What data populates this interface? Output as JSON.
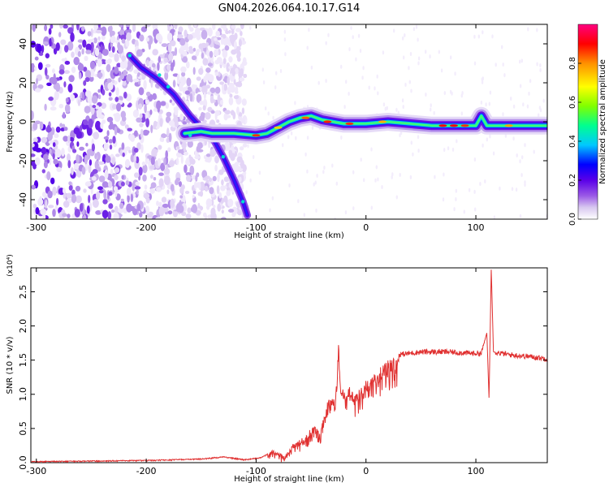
{
  "title": "GN04.2026.064.10.17.G14",
  "chart_data": [
    {
      "type": "heatmap",
      "xlabel": "Height of straight line (km)",
      "ylabel": "Frequency (Hz)",
      "xlim": [
        -305,
        165
      ],
      "ylim": [
        -50,
        50
      ],
      "x_ticks": [
        -300,
        -200,
        -100,
        0,
        100
      ],
      "y_ticks": [
        -40,
        -20,
        0,
        20,
        40
      ],
      "colorbar": {
        "label": "Normalized spectral amplitude",
        "range": [
          0,
          1
        ],
        "ticks": [
          0.0,
          0.2,
          0.4,
          0.6,
          0.8
        ],
        "colormap": [
          "#ffffff",
          "#d8c8f0",
          "#9b59e6",
          "#5a00e8",
          "#0000ff",
          "#00c8ff",
          "#00ff90",
          "#80ff00",
          "#ffff00",
          "#ff9000",
          "#ff0000",
          "#ff0080"
        ]
      },
      "ridge": [
        {
          "x": -165,
          "y": -6
        },
        {
          "x": -150,
          "y": -5
        },
        {
          "x": -140,
          "y": -6
        },
        {
          "x": -120,
          "y": -6
        },
        {
          "x": -100,
          "y": -7
        },
        {
          "x": -90,
          "y": -6
        },
        {
          "x": -80,
          "y": -3
        },
        {
          "x": -70,
          "y": 0
        },
        {
          "x": -60,
          "y": 2
        },
        {
          "x": -50,
          "y": 3
        },
        {
          "x": -40,
          "y": 1
        },
        {
          "x": -30,
          "y": 0
        },
        {
          "x": -20,
          "y": -1
        },
        {
          "x": -10,
          "y": -1
        },
        {
          "x": 0,
          "y": -1
        },
        {
          "x": 20,
          "y": 0
        },
        {
          "x": 40,
          "y": -1
        },
        {
          "x": 60,
          "y": -2
        },
        {
          "x": 80,
          "y": -2
        },
        {
          "x": 100,
          "y": -2
        },
        {
          "x": 105,
          "y": 3
        },
        {
          "x": 110,
          "y": -2
        },
        {
          "x": 130,
          "y": -2
        },
        {
          "x": 165,
          "y": -2
        }
      ],
      "branch_up": [
        {
          "x": -215,
          "y": 34
        },
        {
          "x": -205,
          "y": 28
        },
        {
          "x": -190,
          "y": 22
        },
        {
          "x": -175,
          "y": 14
        },
        {
          "x": -160,
          "y": 3
        },
        {
          "x": -150,
          "y": -3
        }
      ],
      "branch_down": [
        {
          "x": -140,
          "y": -8
        },
        {
          "x": -130,
          "y": -18
        },
        {
          "x": -120,
          "y": -30
        },
        {
          "x": -112,
          "y": -41
        },
        {
          "x": -108,
          "y": -48
        }
      ],
      "noise_region_x": [
        -305,
        -110
      ]
    },
    {
      "type": "line",
      "xlabel": "Height of straight line (km)",
      "ylabel": "SNR (10 * v/v)",
      "y_multiplier": "(x10⁴)",
      "xlim": [
        -305,
        165
      ],
      "ylim": [
        0,
        2.85
      ],
      "x_ticks": [
        -300,
        -200,
        -100,
        0,
        100
      ],
      "y_ticks": [
        0.0,
        0.5,
        1.0,
        1.5,
        2.0,
        2.5
      ],
      "color": "#e03030",
      "series": [
        {
          "points": [
            {
              "x": -305,
              "y": 0.02
            },
            {
              "x": -250,
              "y": 0.03
            },
            {
              "x": -200,
              "y": 0.04
            },
            {
              "x": -150,
              "y": 0.06
            },
            {
              "x": -130,
              "y": 0.09
            },
            {
              "x": -110,
              "y": 0.05
            },
            {
              "x": -95,
              "y": 0.08
            },
            {
              "x": -85,
              "y": 0.18
            },
            {
              "x": -75,
              "y": 0.12
            },
            {
              "x": -65,
              "y": 0.3
            },
            {
              "x": -55,
              "y": 0.4
            },
            {
              "x": -48,
              "y": 0.55
            },
            {
              "x": -42,
              "y": 0.45
            },
            {
              "x": -36,
              "y": 0.85
            },
            {
              "x": -32,
              "y": 1.0
            },
            {
              "x": -28,
              "y": 0.9
            },
            {
              "x": -25,
              "y": 1.77
            },
            {
              "x": -23,
              "y": 1.1
            },
            {
              "x": -18,
              "y": 1.05
            },
            {
              "x": -15,
              "y": 1.15
            },
            {
              "x": -10,
              "y": 1.0
            },
            {
              "x": -5,
              "y": 1.12
            },
            {
              "x": 0,
              "y": 1.2
            },
            {
              "x": 10,
              "y": 1.35
            },
            {
              "x": 20,
              "y": 1.5
            },
            {
              "x": 30,
              "y": 1.58
            },
            {
              "x": 50,
              "y": 1.62
            },
            {
              "x": 75,
              "y": 1.62
            },
            {
              "x": 95,
              "y": 1.6
            },
            {
              "x": 105,
              "y": 1.6
            },
            {
              "x": 110,
              "y": 1.9
            },
            {
              "x": 112,
              "y": 0.93
            },
            {
              "x": 114,
              "y": 2.85
            },
            {
              "x": 116,
              "y": 1.62
            },
            {
              "x": 130,
              "y": 1.58
            },
            {
              "x": 150,
              "y": 1.55
            },
            {
              "x": 165,
              "y": 1.52
            }
          ]
        }
      ]
    }
  ]
}
